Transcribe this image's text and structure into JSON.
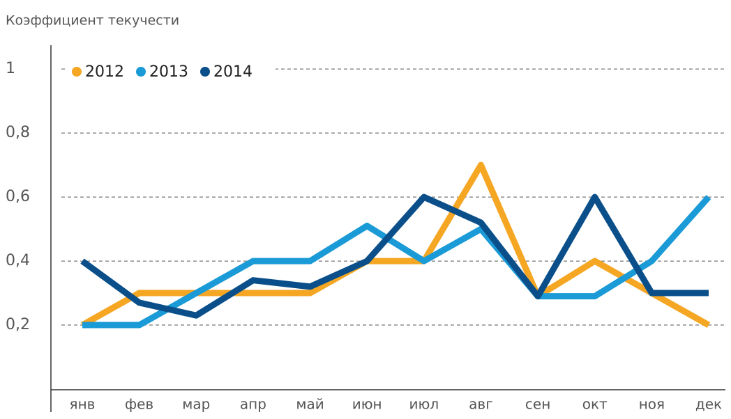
{
  "chart_data": {
    "type": "line",
    "title": "Коэффициент текучести",
    "categories": [
      "янв",
      "фев",
      "мар",
      "апр",
      "май",
      "июн",
      "июл",
      "авг",
      "сен",
      "окт",
      "ноя",
      "дек"
    ],
    "series": [
      {
        "name": "2012",
        "color": "#f5a623",
        "values": [
          0.2,
          0.3,
          0.3,
          0.3,
          0.3,
          0.4,
          0.4,
          0.7,
          0.29,
          0.4,
          0.3,
          0.2
        ]
      },
      {
        "name": "2013",
        "color": "#1a9ad6",
        "values": [
          0.2,
          0.2,
          0.3,
          0.4,
          0.4,
          0.51,
          0.4,
          0.5,
          0.29,
          0.29,
          0.4,
          0.6
        ]
      },
      {
        "name": "2014",
        "color": "#0b4f8a",
        "values": [
          0.4,
          0.27,
          0.23,
          0.34,
          0.32,
          0.4,
          0.6,
          0.52,
          0.29,
          0.6,
          0.3,
          0.3
        ]
      }
    ],
    "ylim": [
      0,
      1.07
    ],
    "yticks": [
      {
        "value": 0.2,
        "label": "0,2"
      },
      {
        "value": 0.4,
        "label": "0,4"
      },
      {
        "value": 0.6,
        "label": "0,6"
      },
      {
        "value": 0.8,
        "label": "0,8"
      },
      1
    ],
    "grid": true,
    "legend": "top-left"
  }
}
